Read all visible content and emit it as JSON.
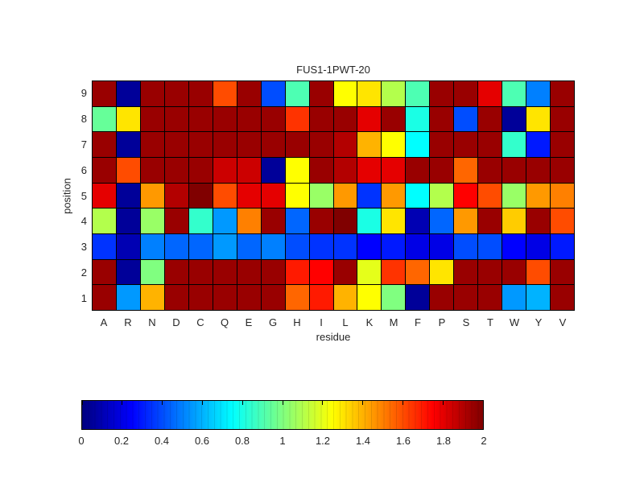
{
  "chart_data": {
    "type": "heatmap",
    "title": "FUS1-1PWT-20",
    "xlabel": "residue",
    "ylabel": "position",
    "colormap": "jet",
    "value_range": [
      0,
      2
    ],
    "grid_on": true,
    "x_categories": [
      "A",
      "R",
      "N",
      "D",
      "C",
      "Q",
      "E",
      "G",
      "H",
      "I",
      "L",
      "K",
      "M",
      "F",
      "P",
      "S",
      "T",
      "W",
      "Y",
      "V"
    ],
    "y_categories": [
      "9",
      "8",
      "7",
      "6",
      "5",
      "4",
      "3",
      "2",
      "1"
    ],
    "rows": [
      [
        1.95,
        0.05,
        1.95,
        1.95,
        1.95,
        1.6,
        1.95,
        0.4,
        0.9,
        1.95,
        1.25,
        1.3,
        1.1,
        0.9,
        1.95,
        1.95,
        1.8,
        0.9,
        0.5,
        1.95
      ],
      [
        0.95,
        1.3,
        1.95,
        1.95,
        1.95,
        1.95,
        1.95,
        1.95,
        1.65,
        1.95,
        1.95,
        1.8,
        1.95,
        0.8,
        1.95,
        0.4,
        1.95,
        0.05,
        1.3,
        1.95
      ],
      [
        1.95,
        0.05,
        1.95,
        1.95,
        1.95,
        1.95,
        1.95,
        1.95,
        1.95,
        1.95,
        1.9,
        1.4,
        1.25,
        0.75,
        1.95,
        1.95,
        1.95,
        0.85,
        0.3,
        1.95
      ],
      [
        1.95,
        1.6,
        1.95,
        1.95,
        1.95,
        1.85,
        1.85,
        0.05,
        1.25,
        1.95,
        1.9,
        1.8,
        1.8,
        1.95,
        1.95,
        1.55,
        1.95,
        1.95,
        1.95,
        1.95
      ],
      [
        1.8,
        0.05,
        1.45,
        1.9,
        2,
        1.6,
        1.8,
        1.8,
        1.25,
        1.05,
        1.45,
        0.35,
        1.45,
        0.75,
        1.1,
        1.75,
        1.6,
        1.05,
        1.45,
        1.5
      ],
      [
        1.1,
        0.05,
        1.05,
        1.95,
        0.85,
        0.55,
        1.5,
        1.95,
        0.45,
        1.95,
        2,
        0.8,
        1.3,
        0.1,
        0.45,
        1.45,
        1.95,
        1.35,
        1.95,
        1.6
      ],
      [
        0.35,
        0.1,
        0.5,
        0.45,
        0.45,
        0.55,
        0.45,
        0.5,
        0.4,
        0.35,
        0.35,
        0.25,
        0.3,
        0.2,
        0.2,
        0.4,
        0.4,
        0.25,
        0.2,
        0.3
      ],
      [
        1.95,
        0.05,
        1,
        1.95,
        1.95,
        1.95,
        1.95,
        1.95,
        1.7,
        1.75,
        1.95,
        1.2,
        1.65,
        1.55,
        1.3,
        1.95,
        1.95,
        1.95,
        1.6,
        1.95
      ],
      [
        1.95,
        0.55,
        1.4,
        1.95,
        1.95,
        1.95,
        1.95,
        1.95,
        1.55,
        1.7,
        1.4,
        1.25,
        1,
        0.05,
        1.95,
        1.95,
        1.95,
        0.55,
        0.6,
        1.95
      ]
    ],
    "colorbar_ticks": [
      "0",
      "0.2",
      "0.4",
      "0.6",
      "0.8",
      "1",
      "1.2",
      "1.4",
      "1.6",
      "1.8",
      "2"
    ],
    "colorbar_tick_values": [
      0,
      0.2,
      0.4,
      0.6,
      0.8,
      1,
      1.2,
      1.4,
      1.6,
      1.8,
      2
    ]
  }
}
